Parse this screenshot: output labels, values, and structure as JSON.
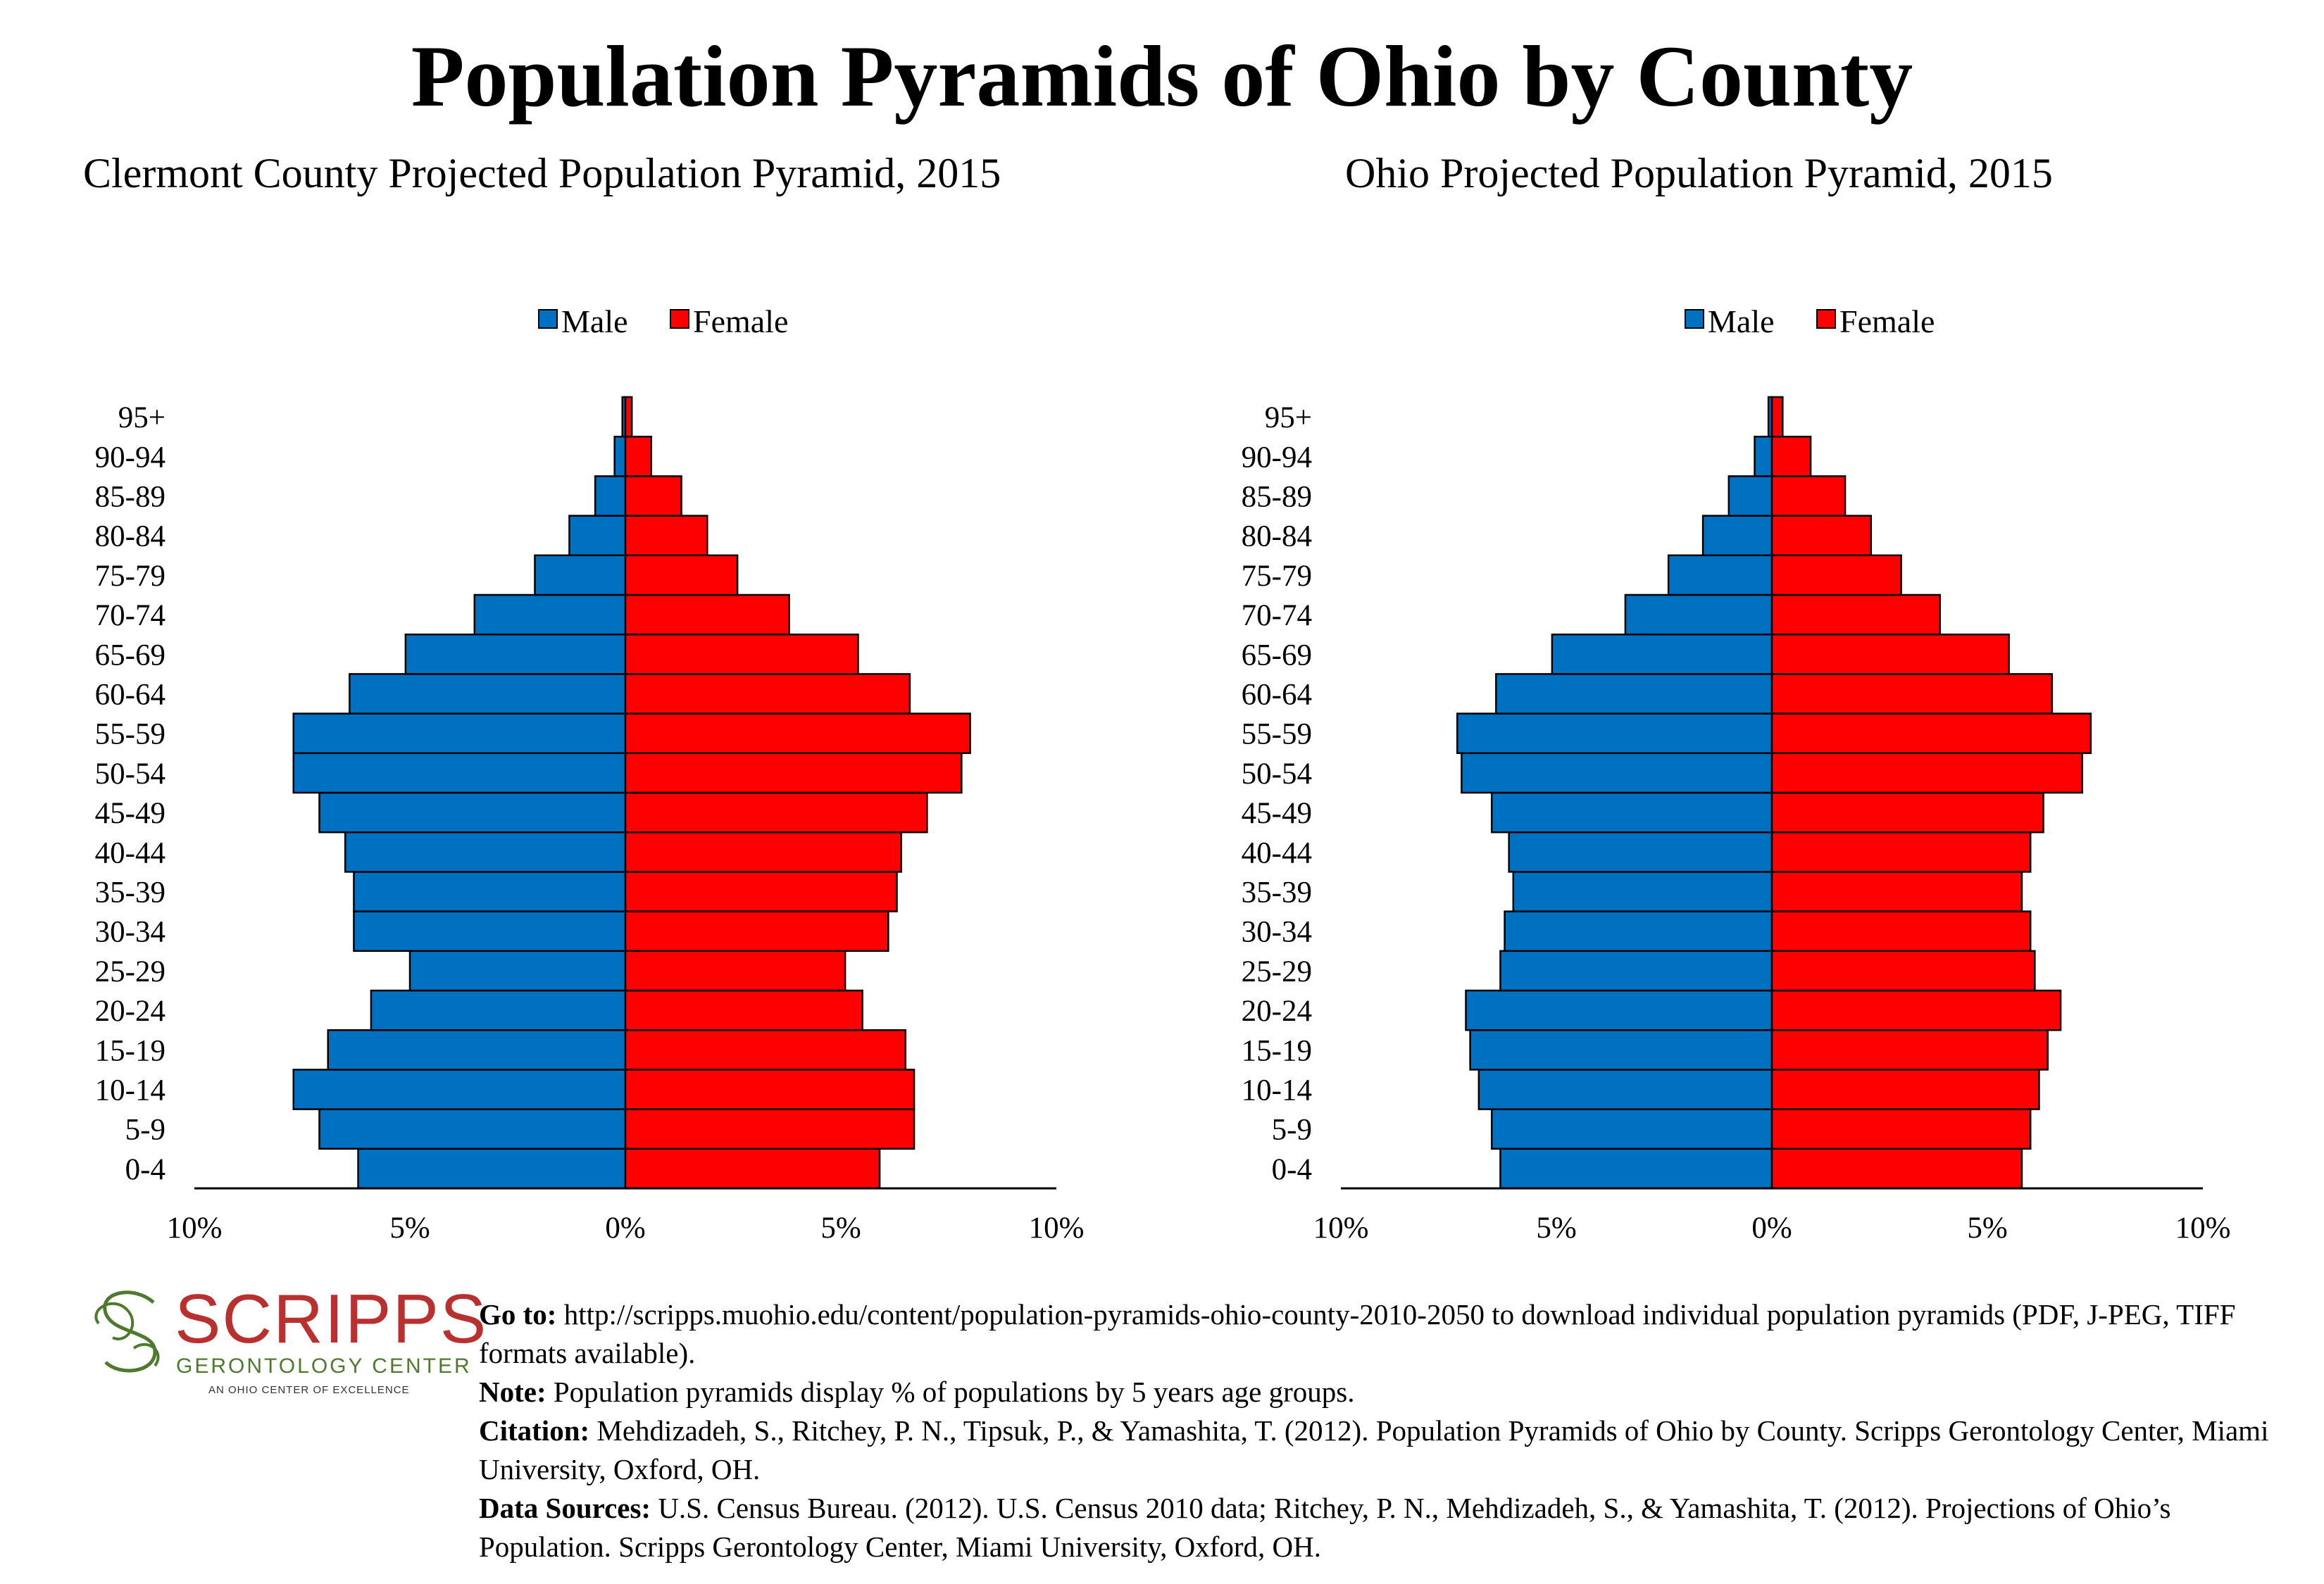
{
  "page": {
    "title": "Population Pyramids of Ohio by County"
  },
  "chart_data": [
    {
      "type": "bar",
      "orientation": "horizontal",
      "title": "Clermont County Projected Population Pyramid, 2015",
      "categories": [
        "0-4",
        "5-9",
        "10-14",
        "15-19",
        "20-24",
        "25-29",
        "30-34",
        "35-39",
        "40-44",
        "45-49",
        "50-54",
        "55-59",
        "60-64",
        "65-69",
        "70-74",
        "75-79",
        "80-84",
        "85-89",
        "90-94",
        "95+"
      ],
      "series": [
        {
          "name": "Male",
          "color": "#0070c0",
          "values": [
            6.2,
            7.1,
            7.7,
            6.9,
            5.9,
            5.0,
            6.3,
            6.3,
            6.5,
            7.1,
            7.7,
            7.7,
            6.4,
            5.1,
            3.5,
            2.1,
            1.3,
            0.7,
            0.25,
            0.07
          ]
        },
        {
          "name": "Female",
          "color": "#ff0000",
          "values": [
            5.9,
            6.7,
            6.7,
            6.5,
            5.5,
            5.1,
            6.1,
            6.3,
            6.4,
            7.0,
            7.8,
            8.0,
            6.6,
            5.4,
            3.8,
            2.6,
            1.9,
            1.3,
            0.6,
            0.15
          ]
        }
      ],
      "xlim": [
        -10,
        10
      ],
      "x_ticks": [
        "10%",
        "5%",
        "0%",
        "5%",
        "10%"
      ],
      "legend": "top-center",
      "grid": false
    },
    {
      "type": "bar",
      "orientation": "horizontal",
      "title": "Ohio Projected Population Pyramid, 2015",
      "categories": [
        "0-4",
        "5-9",
        "10-14",
        "15-19",
        "20-24",
        "25-29",
        "30-34",
        "35-39",
        "40-44",
        "45-49",
        "50-54",
        "55-59",
        "60-64",
        "65-69",
        "70-74",
        "75-79",
        "80-84",
        "85-89",
        "90-94",
        "95+"
      ],
      "series": [
        {
          "name": "Male",
          "color": "#0070c0",
          "values": [
            6.3,
            6.5,
            6.8,
            7.0,
            7.1,
            6.3,
            6.2,
            6.0,
            6.1,
            6.5,
            7.2,
            7.3,
            6.4,
            5.1,
            3.4,
            2.4,
            1.6,
            1.0,
            0.4,
            0.08
          ]
        },
        {
          "name": "Female",
          "color": "#ff0000",
          "values": [
            5.8,
            6.0,
            6.2,
            6.4,
            6.7,
            6.1,
            6.0,
            5.8,
            6.0,
            6.3,
            7.2,
            7.4,
            6.5,
            5.5,
            3.9,
            3.0,
            2.3,
            1.7,
            0.9,
            0.25
          ]
        }
      ],
      "xlim": [
        -10,
        10
      ],
      "x_ticks": [
        "10%",
        "5%",
        "0%",
        "5%",
        "10%"
      ],
      "legend": "top-center",
      "grid": false
    }
  ],
  "logo": {
    "word": "SCRIPPS",
    "subtitle": "GERONTOLOGY CENTER",
    "tagline": "AN OHIO CENTER OF EXCELLENCE"
  },
  "notes": {
    "goto_label": "Go to:",
    "goto_text": "http://scripps.muohio.edu/content/population-pyramids-ohio-county-2010-2050 to download individual population pyramids (PDF, J-PEG, TIFF formats available).",
    "note_label": "Note:",
    "note_text": "Population pyramids display % of populations by 5 years age groups.",
    "citation_label": "Citation:",
    "citation_text": "Mehdizadeh, S., Ritchey, P. N., Tipsuk, P., & Yamashita, T. (2012). Population Pyramids of Ohio by County. Scripps Gerontology Center, Miami University, Oxford, OH.",
    "sources_label": "Data Sources:",
    "sources_text": "U.S. Census Bureau. (2012). U.S. Census 2010 data; Ritchey, P. N., Mehdizadeh, S., & Yamashita, T. (2012). Projections of Ohio’s Population. Scripps Gerontology Center, Miami University, Oxford, OH."
  }
}
